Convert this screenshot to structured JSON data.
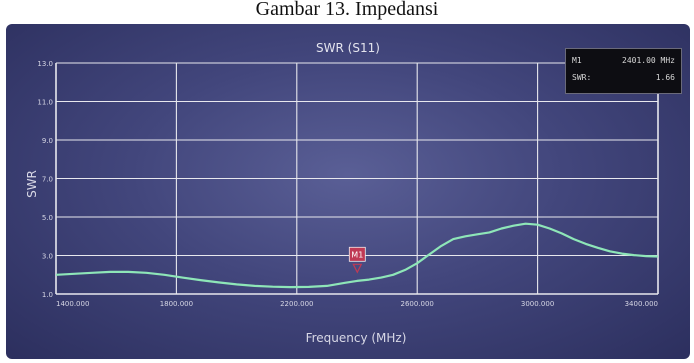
{
  "caption": "Gambar 13. Impedansi",
  "chart_data": {
    "type": "line",
    "title": "SWR (S11)",
    "xlabel": "Frequency (MHz)",
    "ylabel": "SWR",
    "xlim": [
      1400,
      3400
    ],
    "ylim": [
      1.0,
      13.0
    ],
    "x_ticks": [
      1400,
      1800,
      2200,
      2600,
      3000,
      3400
    ],
    "x_tick_labels": [
      "1400.000",
      "1800.000",
      "2200.000",
      "2600.000",
      "3000.000",
      "3400.000"
    ],
    "y_ticks": [
      1.0,
      3.0,
      5.0,
      7.0,
      9.0,
      11.0,
      13.0
    ],
    "y_tick_labels": [
      "1.0",
      "3.0",
      "5.0",
      "7.0",
      "9.0",
      "11.0",
      "13.0"
    ],
    "grid": true,
    "series": [
      {
        "color": "#8ee6b8",
        "x": [
          1400,
          1460,
          1520,
          1580,
          1640,
          1700,
          1760,
          1820,
          1880,
          1940,
          2000,
          2060,
          2120,
          2180,
          2240,
          2300,
          2360,
          2400,
          2440,
          2480,
          2520,
          2560,
          2600,
          2640,
          2680,
          2720,
          2760,
          2800,
          2840,
          2880,
          2920,
          2960,
          3000,
          3040,
          3080,
          3120,
          3160,
          3200,
          3240,
          3280,
          3320,
          3360,
          3400
        ],
        "y": [
          2.0,
          2.05,
          2.1,
          2.15,
          2.15,
          2.1,
          2.0,
          1.85,
          1.72,
          1.6,
          1.5,
          1.42,
          1.38,
          1.36,
          1.37,
          1.42,
          1.58,
          1.68,
          1.75,
          1.85,
          2.0,
          2.25,
          2.6,
          3.05,
          3.5,
          3.85,
          4.0,
          4.1,
          4.2,
          4.4,
          4.55,
          4.65,
          4.6,
          4.4,
          4.15,
          3.85,
          3.6,
          3.4,
          3.22,
          3.1,
          3.02,
          2.97,
          2.95
        ]
      }
    ],
    "marker": {
      "label": "M1",
      "x": 2401,
      "y": 1.66
    }
  },
  "readout": {
    "marker_key": "M1",
    "marker_value": "2401.00 MHz",
    "swr_key": "SWR:",
    "swr_value": "1.66"
  },
  "colors": {
    "trace": "#8ee6b8",
    "marker": "#c03a55",
    "grid": "#e8e8ee"
  }
}
